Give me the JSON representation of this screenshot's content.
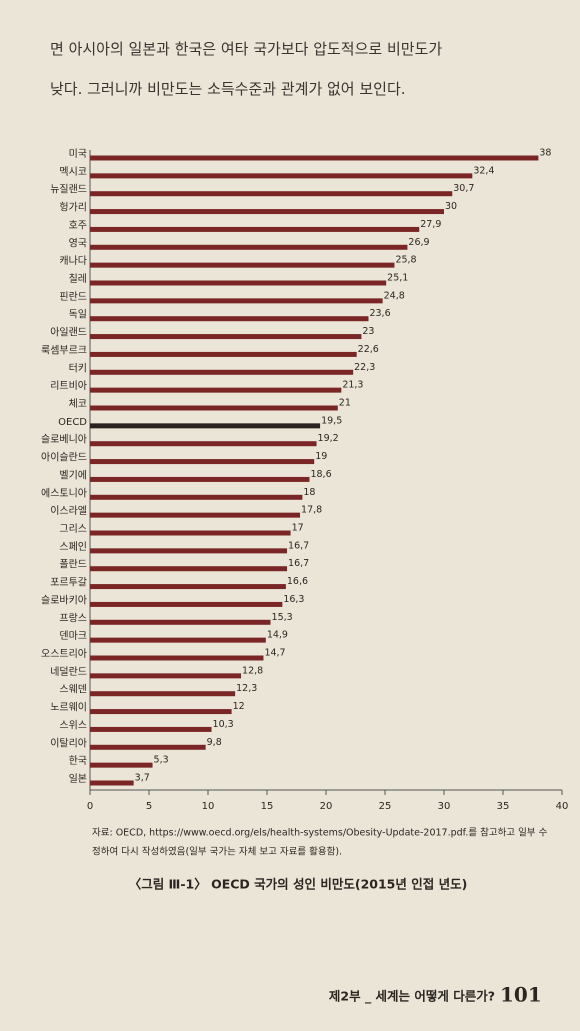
{
  "paragraph": [
    "면 아시아의 일본과 한국은 여타 국가보다 압도적으로 비만도가",
    "낮다. 그러니까 비만도는 소득수준과 관계가 없어 보인다."
  ],
  "chart_data": {
    "type": "bar",
    "orientation": "horizontal",
    "title": "〈그림 Ⅲ-1〉 OECD 국가의 성인 비만도(2015년 인접 년도)",
    "source": [
      "자료: OECD, https://www.oecd.org/els/health-systems/Obesity-Update-2017.pdf.를 참고하고 일부 수",
      "정하여 다시 작성하였음(일부 국가는 자체 보고 자료를 활용함)."
    ],
    "categories": [
      "미국",
      "멕시코",
      "뉴질랜드",
      "헝가리",
      "호주",
      "영국",
      "캐나다",
      "칠레",
      "핀란드",
      "독일",
      "아일랜드",
      "룩셈부르크",
      "터키",
      "리트비아",
      "체코",
      "OECD",
      "슬로베니아",
      "아이슬란드",
      "벨기에",
      "에스토니아",
      "이스라엘",
      "그리스",
      "스페인",
      "폴란드",
      "포르투갈",
      "슬로바키아",
      "프랑스",
      "덴마크",
      "오스트리아",
      "네덜란드",
      "스웨덴",
      "노르웨이",
      "스위스",
      "이탈리아",
      "한국",
      "일본"
    ],
    "values": [
      38,
      32.4,
      30.7,
      30,
      27.9,
      26.9,
      25.8,
      25.1,
      24.8,
      23.6,
      23,
      22.6,
      22.3,
      21.3,
      21,
      19.5,
      19.2,
      19,
      18.6,
      18,
      17.8,
      17,
      16.7,
      16.7,
      16.6,
      16.3,
      15.3,
      14.9,
      14.7,
      12.8,
      12.3,
      12,
      10.3,
      9.8,
      5.3,
      3.7
    ],
    "value_labels": [
      "38",
      "32,4",
      "30,7",
      "30",
      "27,9",
      "26,9",
      "25,8",
      "25,1",
      "24,8",
      "23,6",
      "23",
      "22,6",
      "22,3",
      "21,3",
      "21",
      "19,5",
      "19,2",
      "19",
      "18,6",
      "18",
      "17,8",
      "17",
      "16,7",
      "16,7",
      "16,6",
      "16,3",
      "15,3",
      "14,9",
      "14,7",
      "12,8",
      "12,3",
      "12",
      "10,3",
      "9,8",
      "5,3",
      "3,7"
    ],
    "colors": [
      "#7a2626",
      "#7a2626",
      "#7a2626",
      "#7a2626",
      "#7a2626",
      "#7a2626",
      "#7a2626",
      "#7a2626",
      "#7a2626",
      "#7a2626",
      "#7a2626",
      "#7a2626",
      "#7a2626",
      "#7a2626",
      "#7a2626",
      "#2a2220",
      "#7a2626",
      "#7a2626",
      "#7a2626",
      "#7a2626",
      "#7a2626",
      "#7a2626",
      "#7a2626",
      "#7a2626",
      "#7a2626",
      "#7a2626",
      "#7a2626",
      "#7a2626",
      "#7a2626",
      "#7a2626",
      "#7a2626",
      "#7a2626",
      "#7a2626",
      "#7a2626",
      "#7a2626",
      "#7a2626"
    ],
    "xlim": [
      0,
      40
    ],
    "xticks": [
      0,
      5,
      10,
      15,
      20,
      25,
      30,
      35,
      40
    ]
  },
  "footer": {
    "section": "제2부 _ 세계는 어떻게 다른가?",
    "page": "101"
  }
}
